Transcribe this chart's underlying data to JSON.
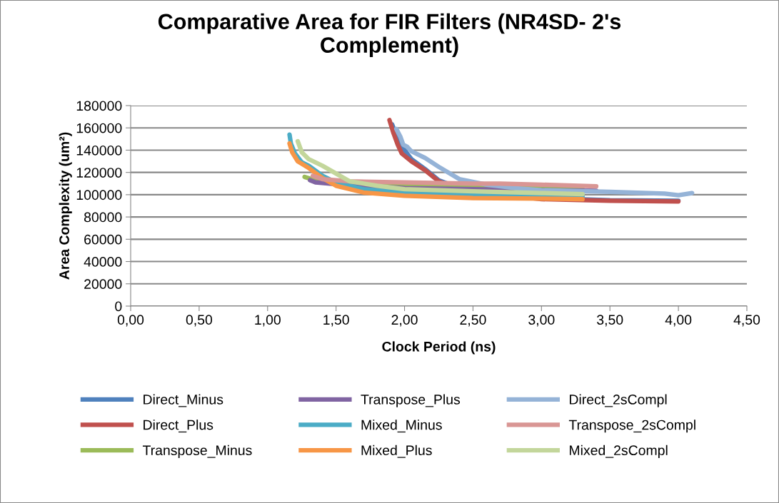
{
  "chart_data": {
    "type": "line",
    "title": "Comparative Area for FIR Filters (NR4SD- 2's Complement)",
    "xlabel": "Clock Period (ns)",
    "ylabel": "Area Complexity (um²)",
    "xlim": [
      0,
      4.5
    ],
    "xticks": [
      {
        "value": 0,
        "label": "0,00"
      },
      {
        "value": 0.5,
        "label": "0,50"
      },
      {
        "value": 1,
        "label": "1,00"
      },
      {
        "value": 1.5,
        "label": "1,50"
      },
      {
        "value": 2,
        "label": "2,00"
      },
      {
        "value": 2.5,
        "label": "2,50"
      },
      {
        "value": 3,
        "label": "3,00"
      },
      {
        "value": 3.5,
        "label": "3,50"
      },
      {
        "value": 4,
        "label": "4,00"
      },
      {
        "value": 4.5,
        "label": "4,50"
      }
    ],
    "ylim": [
      0,
      180000
    ],
    "yticks": [
      0,
      20000,
      40000,
      60000,
      80000,
      100000,
      120000,
      140000,
      160000,
      180000
    ],
    "grid": "y",
    "legend": "bottom",
    "marker": "none",
    "line_style": "solid",
    "series": [
      {
        "name": "Direct_Minus",
        "color": "#4f81bd",
        "x": [
          1.91,
          1.95,
          2.0,
          2.05,
          2.15,
          2.25,
          2.4,
          2.7,
          3.0,
          3.5,
          4.0
        ],
        "values": [
          163000,
          150000,
          140000,
          132000,
          123000,
          113000,
          106000,
          101000,
          97000,
          95000,
          94500
        ]
      },
      {
        "name": "Direct_Plus",
        "color": "#c0504d",
        "x": [
          1.89,
          1.92,
          1.95,
          1.98,
          2.05,
          2.15,
          2.25,
          2.4,
          2.7,
          3.0,
          3.5,
          4.0
        ],
        "values": [
          167000,
          155000,
          145000,
          137000,
          130000,
          122000,
          112000,
          105000,
          100000,
          96000,
          94500,
          94000
        ]
      },
      {
        "name": "Transpose_Minus",
        "color": "#9bbb59",
        "x": [
          1.27,
          1.32,
          1.5,
          2.0,
          2.5,
          3.0,
          3.3
        ],
        "values": [
          116000,
          114000,
          111000,
          108000,
          107000,
          106000,
          105000
        ]
      },
      {
        "name": "Transpose_Plus",
        "color": "#8064a2",
        "x": [
          1.31,
          1.35,
          1.5,
          2.0,
          2.5,
          3.0,
          3.4
        ],
        "values": [
          113000,
          111000,
          109500,
          106000,
          105000,
          104000,
          103500
        ]
      },
      {
        "name": "Mixed_Minus",
        "color": "#4bacc6",
        "x": [
          1.16,
          1.17,
          1.2,
          1.25,
          1.3,
          1.4,
          1.5,
          1.7,
          2.0,
          2.5,
          3.0,
          3.3
        ],
        "values": [
          154000,
          146000,
          137000,
          129000,
          126000,
          117000,
          111000,
          105000,
          102000,
          100000,
          99000,
          98500
        ]
      },
      {
        "name": "Mixed_Plus",
        "color": "#f79646",
        "x": [
          1.16,
          1.18,
          1.22,
          1.3,
          1.4,
          1.5,
          1.7,
          2.0,
          2.5,
          3.0,
          3.3
        ],
        "values": [
          146000,
          138000,
          130000,
          124000,
          115000,
          108000,
          102000,
          99000,
          97000,
          96500,
          96000
        ]
      },
      {
        "name": "Direct_2sCompl",
        "color": "#95b3d7",
        "x": [
          1.94,
          1.97,
          1.99,
          2.02,
          2.05,
          2.15,
          2.25,
          2.4,
          2.6,
          2.8,
          3.0,
          3.5,
          3.9,
          4.0,
          4.1
        ],
        "values": [
          159000,
          152000,
          145000,
          143000,
          139000,
          133000,
          125000,
          114000,
          109000,
          106000,
          104000,
          102500,
          101000,
          99500,
          101500
        ]
      },
      {
        "name": "Transpose_2sCompl",
        "color": "#d99694",
        "x": [
          1.33,
          1.4,
          1.6,
          2.0,
          2.5,
          2.7,
          3.0,
          3.4
        ],
        "values": [
          117000,
          114000,
          112000,
          111000,
          110000,
          110000,
          109000,
          107500
        ]
      },
      {
        "name": "Mixed_2sCompl",
        "color": "#c3d69b",
        "x": [
          1.22,
          1.25,
          1.3,
          1.4,
          1.5,
          1.6,
          1.8,
          2.0,
          2.5,
          3.0,
          3.3
        ],
        "values": [
          148000,
          138000,
          132000,
          126000,
          119000,
          112000,
          108000,
          105000,
          103000,
          101500,
          100500
        ]
      }
    ]
  }
}
